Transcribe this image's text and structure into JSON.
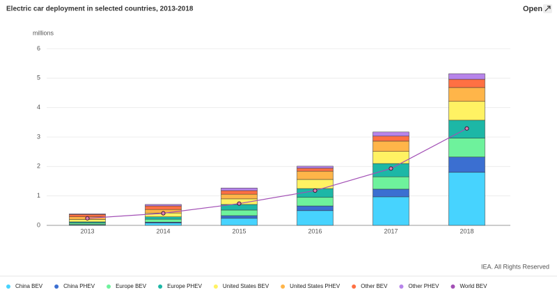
{
  "chart_data": {
    "type": "bar",
    "stacked": true,
    "title": "Electric car deployment in selected countries, 2013-2018",
    "open_button": "Open",
    "y_axis_label": "millions",
    "source": "IEA. All Rights Reserved",
    "categories": [
      "2013",
      "2014",
      "2015",
      "2016",
      "2017",
      "2018"
    ],
    "ylim": [
      0,
      6
    ],
    "yticks": [
      0,
      1,
      2,
      3,
      4,
      5,
      6
    ],
    "grid": true,
    "legend": "bottom",
    "series": [
      {
        "name": "China BEV",
        "color": "#47d3fe",
        "values": [
          0.02,
          0.08,
          0.24,
          0.5,
          0.97,
          1.8
        ]
      },
      {
        "name": "China PHEV",
        "color": "#3b6fd1",
        "values": [
          0.01,
          0.03,
          0.09,
          0.16,
          0.26,
          0.52
        ]
      },
      {
        "name": "Europe BEV",
        "color": "#6ef29c",
        "values": [
          0.05,
          0.1,
          0.19,
          0.29,
          0.42,
          0.64
        ]
      },
      {
        "name": "Europe PHEV",
        "color": "#1db7a6",
        "values": [
          0.04,
          0.08,
          0.19,
          0.3,
          0.45,
          0.61
        ]
      },
      {
        "name": "United States BEV",
        "color": "#fff263",
        "values": [
          0.08,
          0.13,
          0.19,
          0.31,
          0.41,
          0.64
        ]
      },
      {
        "name": "United States PHEV",
        "color": "#ffb549",
        "values": [
          0.09,
          0.12,
          0.16,
          0.28,
          0.35,
          0.47
        ]
      },
      {
        "name": "Other BEV",
        "color": "#ff7043",
        "values": [
          0.08,
          0.12,
          0.12,
          0.1,
          0.17,
          0.28
        ]
      },
      {
        "name": "Other PHEV",
        "color": "#b784ea",
        "values": [
          0.02,
          0.05,
          0.09,
          0.07,
          0.14,
          0.19
        ]
      },
      {
        "name": "World BEV",
        "color": "#a24fb5",
        "type": "line",
        "values": [
          0.24,
          0.41,
          0.74,
          1.18,
          1.93,
          3.29
        ]
      }
    ]
  }
}
